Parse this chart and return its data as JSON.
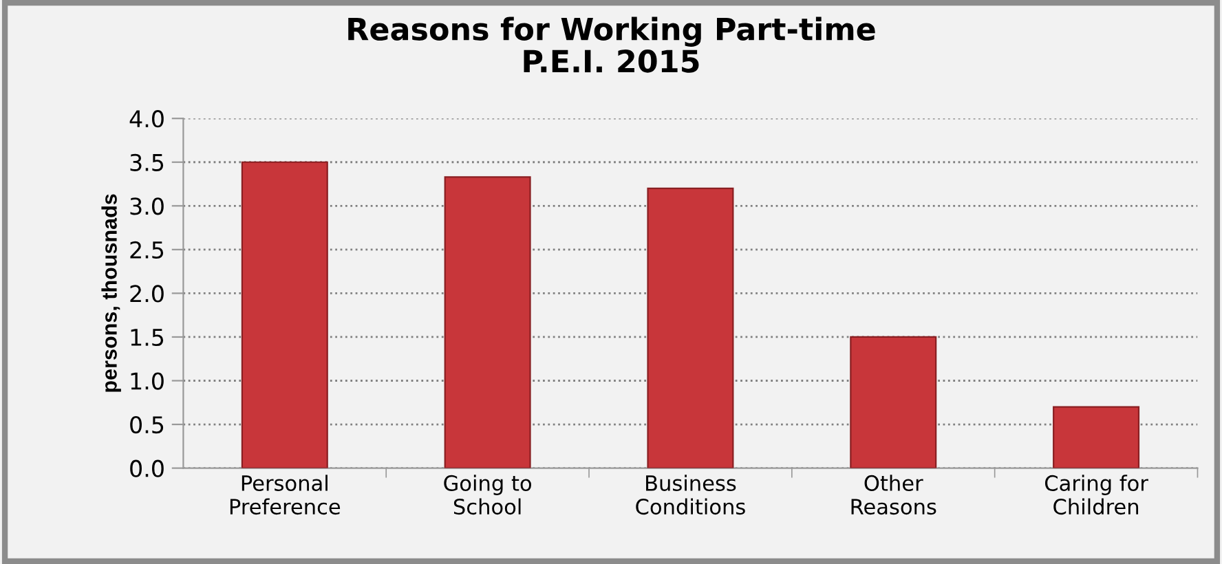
{
  "chart_data": {
    "type": "bar",
    "title": "Reasons for Working Part-time\nP.E.I. 2015",
    "ylabel": "persons, thousnads",
    "categories": [
      "Personal\nPreference",
      "Going to\nSchool",
      "Business\nConditions",
      "Other\nReasons",
      "Caring for\nChildren"
    ],
    "values": [
      3.5,
      3.33,
      3.2,
      1.5,
      0.7
    ],
    "color": "#c8363a",
    "ylim": [
      0,
      4
    ],
    "yticks": [
      {
        "value": 0,
        "label": "0.0"
      },
      {
        "value": 0.5,
        "label": "0.5"
      },
      {
        "value": 1,
        "label": "1.0"
      },
      {
        "value": 1.5,
        "label": "1.5"
      },
      {
        "value": 2,
        "label": "2.0"
      },
      {
        "value": 2.5,
        "label": "2.5"
      },
      {
        "value": 3,
        "label": "3.0"
      },
      {
        "value": 3.5,
        "label": "3.5"
      },
      {
        "value": 4,
        "label": "4.0"
      }
    ],
    "grid": "y"
  }
}
